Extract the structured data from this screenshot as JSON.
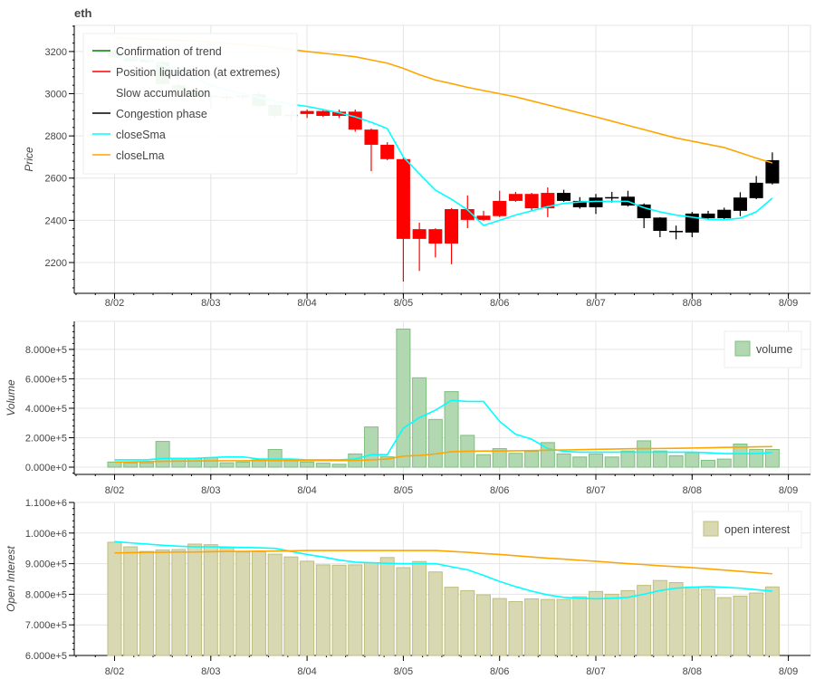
{
  "title": "eth",
  "colors": {
    "confirmation": "#008000",
    "liquidation": "#ff0000",
    "slow_accumulation": "#ffffff",
    "congestion": "#000000",
    "sma": "#00ffff",
    "lma": "#ffa500",
    "volume_fill": "#b2d8b2",
    "volume_line": "#7fbf7f",
    "oi_fill": "#d8d8b2",
    "oi_line": "#bfbf7f",
    "grid": "#e5e5e5"
  },
  "x_ticks": {
    "days": [
      0,
      1,
      2,
      3,
      4,
      5,
      6,
      7
    ],
    "labels": [
      "8/02",
      "8/03",
      "8/04",
      "8/05",
      "8/06",
      "8/07",
      "8/08",
      "8/09"
    ]
  },
  "chart_data": [
    {
      "type": "candlestick",
      "name": "price",
      "ylabel": "Price",
      "ylim": [
        2054,
        3324
      ],
      "y_ticks": [
        2200,
        2400,
        2600,
        2800,
        3000,
        3200
      ],
      "interval_hours": 4,
      "legend": [
        {
          "label": "Confirmation of trend",
          "color_key": "confirmation"
        },
        {
          "label": "Position liquidation (at extremes)",
          "color_key": "liquidation"
        },
        {
          "label": "Slow accumulation",
          "color_key": "slow_accumulation"
        },
        {
          "label": "Congestion phase",
          "color_key": "congestion"
        },
        {
          "label": "closeSma",
          "color_key": "sma"
        },
        {
          "label": "closeLma",
          "color_key": "lma"
        }
      ],
      "candles": [
        {
          "o": 3200,
          "h": 3210,
          "l": 3170,
          "c": 3175,
          "cat": "confirmation"
        },
        {
          "o": 3175,
          "h": 3180,
          "l": 3150,
          "c": 3155,
          "cat": "confirmation"
        },
        {
          "o": 3160,
          "h": 3165,
          "l": 3145,
          "c": 3150,
          "cat": "confirmation"
        },
        {
          "o": 3150,
          "h": 3155,
          "l": 3040,
          "c": 3045,
          "cat": "confirmation"
        },
        {
          "o": 3040,
          "h": 3050,
          "l": 3010,
          "c": 3015,
          "cat": "confirmation"
        },
        {
          "o": 3007,
          "h": 3015,
          "l": 2980,
          "c": 2985,
          "cat": "confirmation"
        },
        {
          "o": 2990,
          "h": 3000,
          "l": 2930,
          "c": 2985,
          "cat": "confirmation"
        },
        {
          "o": 2986,
          "h": 3000,
          "l": 2970,
          "c": 2984,
          "cat": "confirmation"
        },
        {
          "o": 2990,
          "h": 3000,
          "l": 2975,
          "c": 2985,
          "cat": "confirmation"
        },
        {
          "o": 2998,
          "h": 3010,
          "l": 2935,
          "c": 2942,
          "cat": "confirmation"
        },
        {
          "o": 2947,
          "h": 2955,
          "l": 2885,
          "c": 2895,
          "cat": "confirmation"
        },
        {
          "o": 2900,
          "h": 2910,
          "l": 2870,
          "c": 2895,
          "cat": "confirmation"
        },
        {
          "o": 2918,
          "h": 2925,
          "l": 2885,
          "c": 2904,
          "cat": "liquidation"
        },
        {
          "o": 2918,
          "h": 2922,
          "l": 2890,
          "c": 2895,
          "cat": "liquidation"
        },
        {
          "o": 2915,
          "h": 2925,
          "l": 2885,
          "c": 2895,
          "cat": "liquidation"
        },
        {
          "o": 2915,
          "h": 2925,
          "l": 2820,
          "c": 2830,
          "cat": "liquidation"
        },
        {
          "o": 2830,
          "h": 2835,
          "l": 2633,
          "c": 2758,
          "cat": "liquidation"
        },
        {
          "o": 2758,
          "h": 2770,
          "l": 2685,
          "c": 2690,
          "cat": "liquidation"
        },
        {
          "o": 2690,
          "h": 2698,
          "l": 2110,
          "c": 2312,
          "cat": "liquidation"
        },
        {
          "o": 2358,
          "h": 2389,
          "l": 2160,
          "c": 2312,
          "cat": "liquidation"
        },
        {
          "o": 2358,
          "h": 2362,
          "l": 2224,
          "c": 2290,
          "cat": "liquidation"
        },
        {
          "o": 2290,
          "h": 2458,
          "l": 2192,
          "c": 2453,
          "cat": "liquidation"
        },
        {
          "o": 2402,
          "h": 2518,
          "l": 2363,
          "c": 2453,
          "cat": "liquidation"
        },
        {
          "o": 2402,
          "h": 2445,
          "l": 2398,
          "c": 2422,
          "cat": "liquidation"
        },
        {
          "o": 2420,
          "h": 2540,
          "l": 2415,
          "c": 2492,
          "cat": "liquidation"
        },
        {
          "o": 2492,
          "h": 2535,
          "l": 2488,
          "c": 2525,
          "cat": "liquidation"
        },
        {
          "o": 2457,
          "h": 2530,
          "l": 2445,
          "c": 2525,
          "cat": "liquidation"
        },
        {
          "o": 2457,
          "h": 2556,
          "l": 2415,
          "c": 2530,
          "cat": "liquidation"
        },
        {
          "o": 2530,
          "h": 2545,
          "l": 2488,
          "c": 2492,
          "cat": "congestion"
        },
        {
          "o": 2492,
          "h": 2510,
          "l": 2455,
          "c": 2462,
          "cat": "congestion"
        },
        {
          "o": 2462,
          "h": 2525,
          "l": 2430,
          "c": 2508,
          "cat": "congestion"
        },
        {
          "o": 2510,
          "h": 2535,
          "l": 2485,
          "c": 2510,
          "cat": "congestion"
        },
        {
          "o": 2512,
          "h": 2540,
          "l": 2465,
          "c": 2470,
          "cat": "congestion"
        },
        {
          "o": 2475,
          "h": 2480,
          "l": 2363,
          "c": 2410,
          "cat": "congestion"
        },
        {
          "o": 2413,
          "h": 2415,
          "l": 2320,
          "c": 2350,
          "cat": "congestion"
        },
        {
          "o": 2350,
          "h": 2375,
          "l": 2310,
          "c": 2350,
          "cat": "congestion"
        },
        {
          "o": 2342,
          "h": 2440,
          "l": 2320,
          "c": 2432,
          "cat": "congestion"
        },
        {
          "o": 2410,
          "h": 2445,
          "l": 2405,
          "c": 2432,
          "cat": "congestion"
        },
        {
          "o": 2410,
          "h": 2460,
          "l": 2405,
          "c": 2450,
          "cat": "congestion"
        },
        {
          "o": 2445,
          "h": 2533,
          "l": 2420,
          "c": 2508,
          "cat": "congestion"
        },
        {
          "o": 2505,
          "h": 2610,
          "l": 2500,
          "c": 2578,
          "cat": "congestion"
        },
        {
          "o": 2575,
          "h": 2722,
          "l": 2570,
          "c": 2685,
          "cat": "congestion"
        }
      ],
      "closeSma": [
        3175,
        3168,
        3160,
        3135,
        3110,
        3075,
        3040,
        3020,
        3000,
        2982,
        2965,
        2950,
        2940,
        2925,
        2910,
        2890,
        2865,
        2835,
        2700,
        2620,
        2543,
        2500,
        2450,
        2376,
        2400,
        2425,
        2445,
        2465,
        2480,
        2487,
        2490,
        2490,
        2490,
        2460,
        2440,
        2425,
        2415,
        2405,
        2403,
        2410,
        2440,
        2505
      ],
      "closeLma": [
        3265,
        3262,
        3259,
        3256,
        3253,
        3250,
        3245,
        3239,
        3233,
        3227,
        3220,
        3210,
        3200,
        3192,
        3184,
        3175,
        3160,
        3145,
        3120,
        3090,
        3065,
        3048,
        3030,
        3015,
        3000,
        2985,
        2966,
        2947,
        2928,
        2909,
        2890,
        2870,
        2850,
        2830,
        2810,
        2790,
        2775,
        2760,
        2745,
        2720,
        2695,
        2672
      ]
    },
    {
      "type": "bar",
      "name": "volume",
      "ylabel": "Volume",
      "ylim": [
        -49000,
        990000
      ],
      "y_ticks": [
        0,
        200000,
        400000,
        600000,
        800000
      ],
      "y_tick_labels": [
        "0.000e+0",
        "2.000e+5",
        "4.000e+5",
        "6.000e+5",
        "8.000e+5"
      ],
      "legend": [
        {
          "label": "volume"
        }
      ],
      "values": [
        35000,
        30000,
        30000,
        175000,
        60000,
        60000,
        65000,
        30000,
        35000,
        50000,
        120000,
        50000,
        35000,
        27000,
        20000,
        90000,
        273000,
        70000,
        938000,
        607000,
        324000,
        513000,
        216000,
        85000,
        126000,
        94000,
        108000,
        167000,
        90000,
        69000,
        90000,
        69000,
        110000,
        179000,
        110000,
        77000,
        98000,
        47000,
        55000,
        157000,
        120000,
        120000
      ],
      "sma": [
        50000,
        50000,
        50000,
        60000,
        60000,
        60000,
        65000,
        70000,
        70000,
        55000,
        55000,
        55000,
        50000,
        50000,
        50000,
        55000,
        85000,
        85000,
        265000,
        336000,
        387000,
        454000,
        446000,
        446000,
        311000,
        224000,
        190000,
        126000,
        108000,
        102000,
        102000,
        102000,
        102000,
        102000,
        102000,
        102000,
        102000,
        98000,
        92000,
        92000,
        92000,
        100000
      ],
      "lma": [
        35000,
        36000,
        38000,
        40000,
        41000,
        42000,
        43000,
        44000,
        44000,
        45000,
        45000,
        45000,
        45000,
        45000,
        45000,
        46000,
        50000,
        55000,
        75000,
        80000,
        90000,
        105000,
        108000,
        110000,
        110000,
        111000,
        113000,
        115000,
        117000,
        119000,
        121000,
        123000,
        125000,
        126000,
        127000,
        128000,
        130000,
        132000,
        134000,
        136000,
        138000,
        140000
      ]
    },
    {
      "type": "bar",
      "name": "open interest",
      "ylabel": "Open Interest",
      "ylim": [
        600000,
        1100000
      ],
      "y_ticks": [
        600000,
        700000,
        800000,
        900000,
        1000000,
        1100000
      ],
      "y_tick_labels": [
        "6.000e+5",
        "7.000e+5",
        "8.000e+5",
        "9.000e+5",
        "1.000e+6",
        "1.100e+6"
      ],
      "legend": [
        {
          "label": "open interest"
        }
      ],
      "values": [
        970000,
        955000,
        940000,
        945000,
        946000,
        964000,
        962000,
        952000,
        938000,
        939000,
        931000,
        922000,
        908000,
        896000,
        895000,
        896000,
        903000,
        920000,
        887000,
        907000,
        873000,
        823000,
        812000,
        798000,
        786000,
        776000,
        785000,
        783000,
        783000,
        792000,
        809000,
        800000,
        812000,
        829000,
        845000,
        838000,
        824000,
        816000,
        789000,
        794000,
        804000,
        824000
      ],
      "sma": [
        972000,
        968000,
        964000,
        960000,
        957000,
        955000,
        955000,
        954000,
        953000,
        952000,
        950000,
        940000,
        930000,
        922000,
        912000,
        905000,
        903000,
        901000,
        900000,
        900000,
        900000,
        890000,
        880000,
        862000,
        842000,
        825000,
        810000,
        798000,
        790000,
        787000,
        785000,
        787000,
        790000,
        800000,
        812000,
        820000,
        823000,
        825000,
        823000,
        820000,
        815000,
        810000
      ],
      "lma": [
        935000,
        936000,
        937000,
        937000,
        938000,
        938000,
        939000,
        940000,
        940000,
        941000,
        941000,
        942000,
        943000,
        943000,
        943000,
        943000,
        943000,
        943000,
        943000,
        943000,
        943000,
        940000,
        937000,
        933000,
        930000,
        926000,
        922000,
        918000,
        915000,
        911000,
        908000,
        904000,
        900000,
        897000,
        893000,
        890000,
        887000,
        883000,
        879000,
        875000,
        871000,
        867000
      ]
    }
  ]
}
